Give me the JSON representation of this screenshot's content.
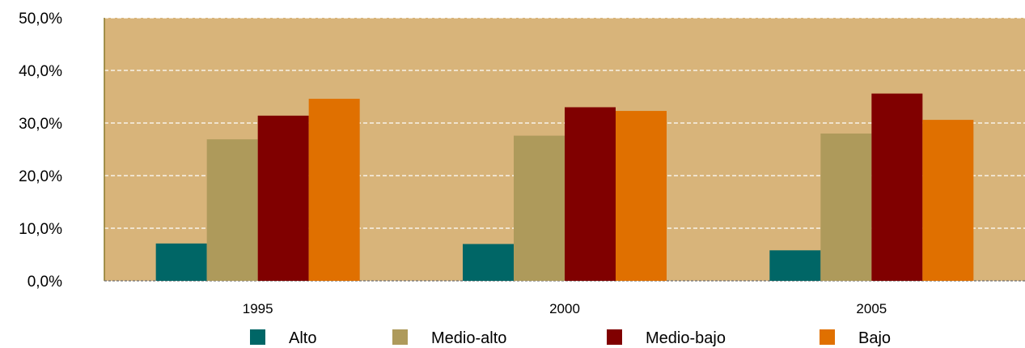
{
  "chart_data": {
    "type": "bar",
    "categories": [
      "1995",
      "2000",
      "2005"
    ],
    "series": [
      {
        "name": "Alto",
        "color": "#006666",
        "values": [
          7.1,
          7.0,
          5.8
        ]
      },
      {
        "name": "Medio-alto",
        "color": "#ae9a5b",
        "values": [
          26.9,
          27.6,
          28.0
        ]
      },
      {
        "name": "Medio-bajo",
        "color": "#800000",
        "values": [
          31.4,
          33.0,
          35.6
        ]
      },
      {
        "name": "Bajo",
        "color": "#e07000",
        "values": [
          34.6,
          32.3,
          30.6
        ]
      }
    ],
    "ylim": [
      0,
      50
    ],
    "yticks": [
      0,
      10,
      20,
      30,
      40,
      50
    ],
    "ytick_labels": [
      "0,0%",
      "10,0%",
      "20,0%",
      "30,0%",
      "40,0%",
      "50,0%"
    ],
    "plot_background": "#d8b47a",
    "grid": true,
    "grid_color": "#ffffff",
    "axis_color": "#8a7a2a",
    "legend_position": "bottom",
    "title": "",
    "xlabel": "",
    "ylabel": ""
  }
}
